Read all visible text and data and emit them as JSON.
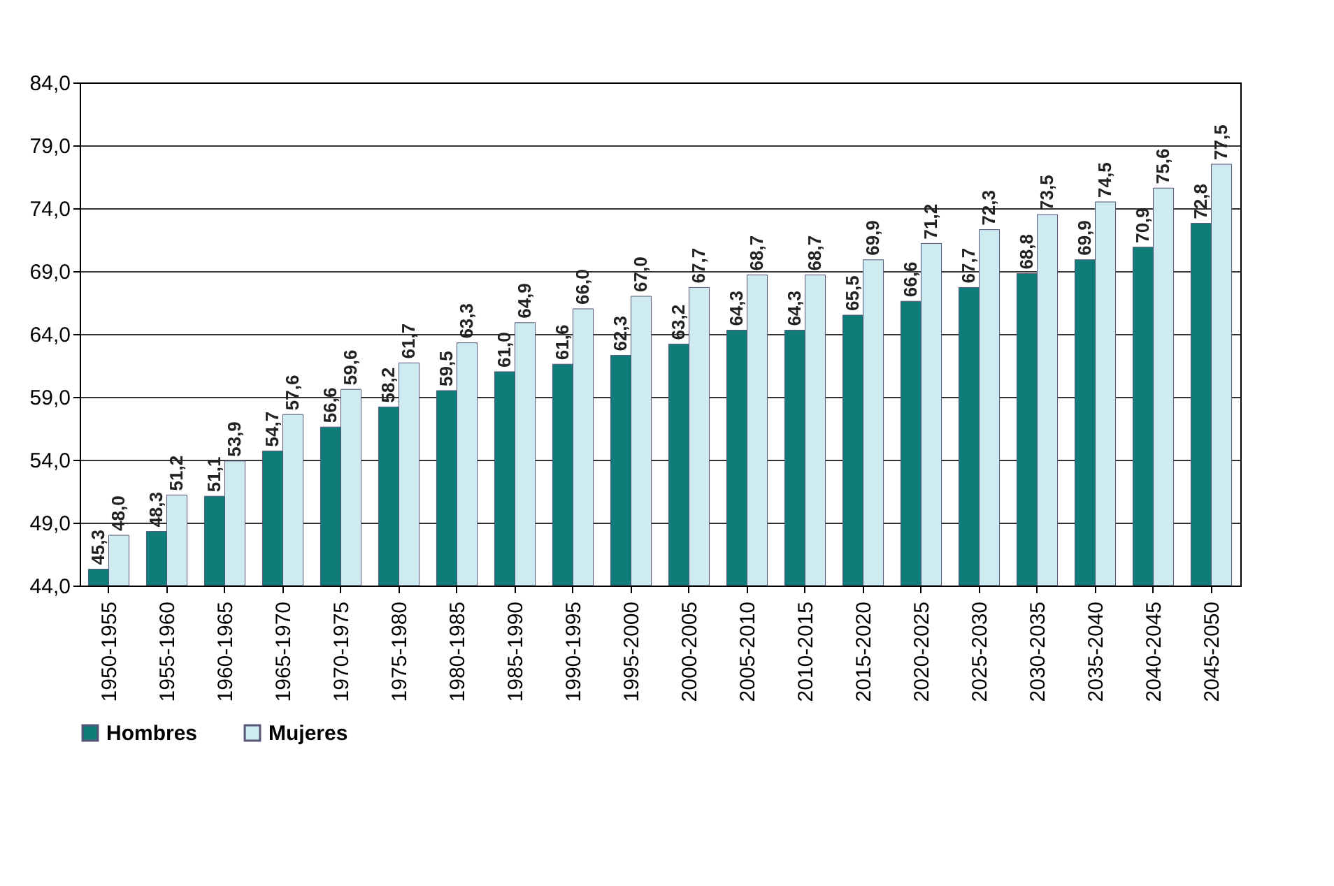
{
  "chart_data": {
    "type": "bar",
    "categories": [
      "1950-1955",
      "1955-1960",
      "1960-1965",
      "1965-1970",
      "1970-1975",
      "1975-1980",
      "1980-1985",
      "1985-1990",
      "1990-1995",
      "1995-2000",
      "2000-2005",
      "2005-2010",
      "2010-2015",
      "2015-2020",
      "2020-2025",
      "2025-2030",
      "2030-2035",
      "2035-2040",
      "2040-2045",
      "2045-2050"
    ],
    "series": [
      {
        "name": "Hombres",
        "color": "#0e7c78",
        "values": [
          45.3,
          48.3,
          51.1,
          54.7,
          56.6,
          58.2,
          59.5,
          61.0,
          61.6,
          62.3,
          63.2,
          64.3,
          64.3,
          65.5,
          66.6,
          67.7,
          68.8,
          69.9,
          70.9,
          72.8
        ],
        "value_labels": [
          "45,3",
          "48,3",
          "51,1",
          "54,7",
          "56,6",
          "58,2",
          "59,5",
          "61,0",
          "61,6",
          "62,3",
          "63,2",
          "64,3",
          "64,3",
          "65,5",
          "66,6",
          "67,7",
          "68,8",
          "69,9",
          "70,9",
          "72,8"
        ]
      },
      {
        "name": "Mujeres",
        "color": "#cdebf0",
        "values": [
          48.0,
          51.2,
          53.9,
          57.6,
          59.6,
          61.7,
          63.3,
          64.9,
          66.0,
          67.0,
          67.7,
          68.7,
          68.7,
          69.9,
          71.2,
          72.3,
          73.5,
          74.5,
          75.6,
          77.5
        ],
        "value_labels": [
          "48,0",
          "51,2",
          "53,9",
          "57,6",
          "59,6",
          "61,7",
          "63,3",
          "64,9",
          "66,0",
          "67,0",
          "67,7",
          "68,7",
          "68,7",
          "69,9",
          "71,2",
          "72,3",
          "73,5",
          "74,5",
          "75,6",
          "77,5"
        ]
      }
    ],
    "ylim": [
      44,
      84
    ],
    "yticks": [
      {
        "value": 44,
        "label": "44,0"
      },
      {
        "value": 49,
        "label": "49,0"
      },
      {
        "value": 54,
        "label": "54,0"
      },
      {
        "value": 59,
        "label": "59,0"
      },
      {
        "value": 64,
        "label": "64,0"
      },
      {
        "value": 69,
        "label": "69,0"
      },
      {
        "value": 74,
        "label": "74,0"
      },
      {
        "value": 79,
        "label": "79,0"
      },
      {
        "value": 84,
        "label": "84,0"
      }
    ],
    "grid": "y",
    "legend": "bottom"
  }
}
